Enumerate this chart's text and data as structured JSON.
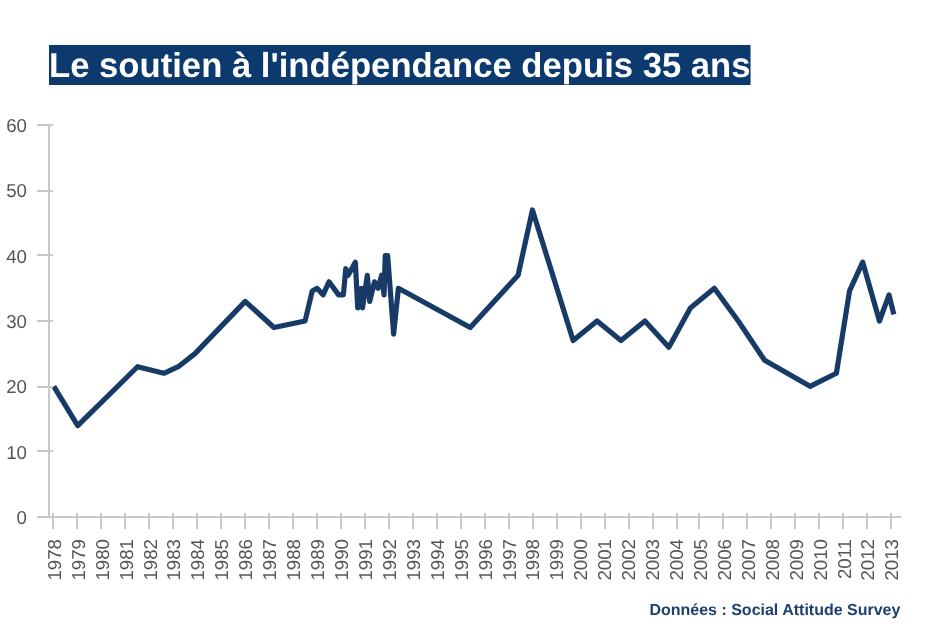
{
  "chart_data": {
    "type": "line",
    "title": "Le soutien à l'indépendance depuis 35 ans",
    "annotations": [
      "Données : Social Attitude Survey"
    ],
    "x": [
      1978,
      1979,
      1981.5,
      1982.6,
      1983.2,
      1983.9,
      1986,
      1987.2,
      1988.5,
      1988.8,
      1989,
      1989.25,
      1989.5,
      1989.9,
      1990.1,
      1990.2,
      1990.3,
      1990.6,
      1990.7,
      1990.85,
      1990.9,
      1991.1,
      1991.2,
      1991.4,
      1991.55,
      1991.7,
      1991.8,
      1991.85,
      1991.95,
      1992.2,
      1992.4,
      1995.4,
      1997.4,
      1998,
      1999.7,
      2000.7,
      2001.7,
      2002.7,
      2003.7,
      2004.6,
      2005.6,
      2006.6,
      2007.7,
      2009.6,
      2010.7,
      2011.25,
      2011.8,
      2012.5,
      2012.9,
      2013.1
    ],
    "series": [
      {
        "color": "#173a66",
        "values": [
          20,
          14,
          23,
          22,
          23,
          25,
          33,
          29,
          30,
          34.6,
          35,
          34,
          36,
          34,
          34,
          38,
          37,
          39,
          32,
          35,
          32,
          37,
          33,
          36,
          35,
          37,
          34,
          40,
          40,
          28,
          35,
          29,
          37,
          47,
          27,
          30,
          27,
          30,
          26,
          32,
          35,
          30,
          24,
          20,
          22,
          34.6,
          39,
          30,
          34,
          31
        ]
      }
    ],
    "xlim": [
      1977.8,
      2013.4
    ],
    "xticks": [
      1978,
      1979,
      1980,
      1981,
      1982,
      1983,
      1984,
      1985,
      1986,
      1987,
      1988,
      1989,
      1990,
      1991,
      1992,
      1993,
      1994,
      1995,
      1996,
      1997,
      1998,
      1999,
      2000,
      2001,
      2002,
      2003,
      2004,
      2005,
      2006,
      2007,
      2008,
      2009,
      2010,
      2011,
      2012,
      2013
    ],
    "ylim": [
      0,
      60
    ],
    "yticks": [
      0,
      10,
      20,
      30,
      40,
      50,
      60
    ],
    "grid": false,
    "marker": "none",
    "line_style": "solid"
  }
}
